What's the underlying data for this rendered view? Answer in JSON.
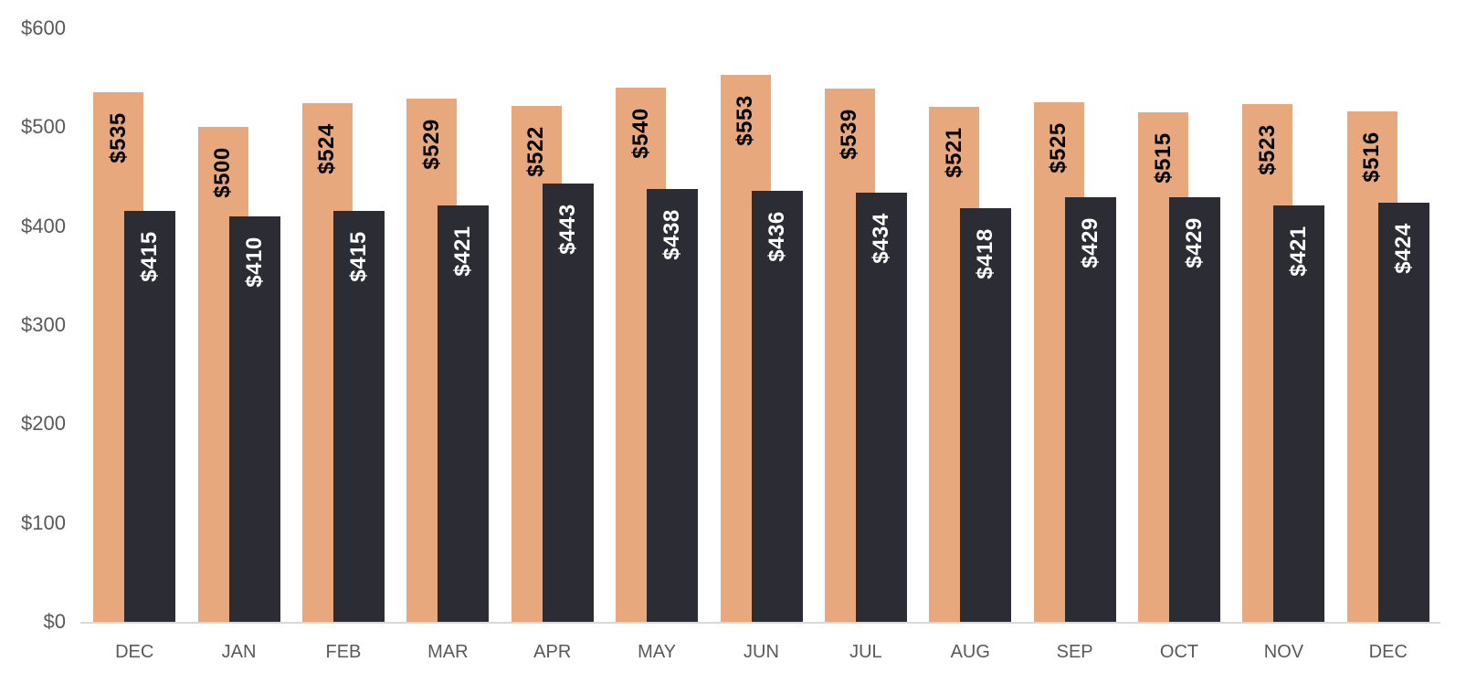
{
  "chart_data": {
    "type": "bar",
    "title": "",
    "xlabel": "",
    "ylabel": "",
    "categories": [
      "DEC",
      "JAN",
      "FEB",
      "MAR",
      "APR",
      "MAY",
      "JUN",
      "JUL",
      "AUG",
      "SEP",
      "OCT",
      "NOV",
      "DEC"
    ],
    "series": [
      {
        "name": "series-1",
        "color": "#e8a87d",
        "label_color": "#000000",
        "values": [
          535,
          500,
          524,
          529,
          522,
          540,
          553,
          539,
          521,
          525,
          515,
          523,
          516
        ],
        "labels": [
          "$535",
          "$500",
          "$524",
          "$529",
          "$522",
          "$540",
          "$553",
          "$539",
          "$521",
          "$525",
          "$515",
          "$523",
          "$516"
        ]
      },
      {
        "name": "series-2",
        "color": "#2c2c34",
        "label_color": "#ffffff",
        "values": [
          415,
          410,
          415,
          421,
          443,
          438,
          436,
          434,
          418,
          429,
          429,
          421,
          424
        ],
        "labels": [
          "$415",
          "$410",
          "$415",
          "$421",
          "$443",
          "$438",
          "$436",
          "$434",
          "$418",
          "$429",
          "$429",
          "$421",
          "$424"
        ]
      }
    ],
    "value_prefix": "$",
    "y_axis": {
      "min": 0,
      "max": 600,
      "step": 100,
      "tick_labels": [
        "$0",
        "$100",
        "$200",
        "$300",
        "$400",
        "$500",
        "$600"
      ]
    },
    "grid": false,
    "legend_position": "none",
    "label_rotation_degrees": -90,
    "label_position": "inside-end",
    "colors": {
      "axis_text": "#595959",
      "axis_line": "#d9d9d9",
      "background": "#ffffff"
    }
  }
}
